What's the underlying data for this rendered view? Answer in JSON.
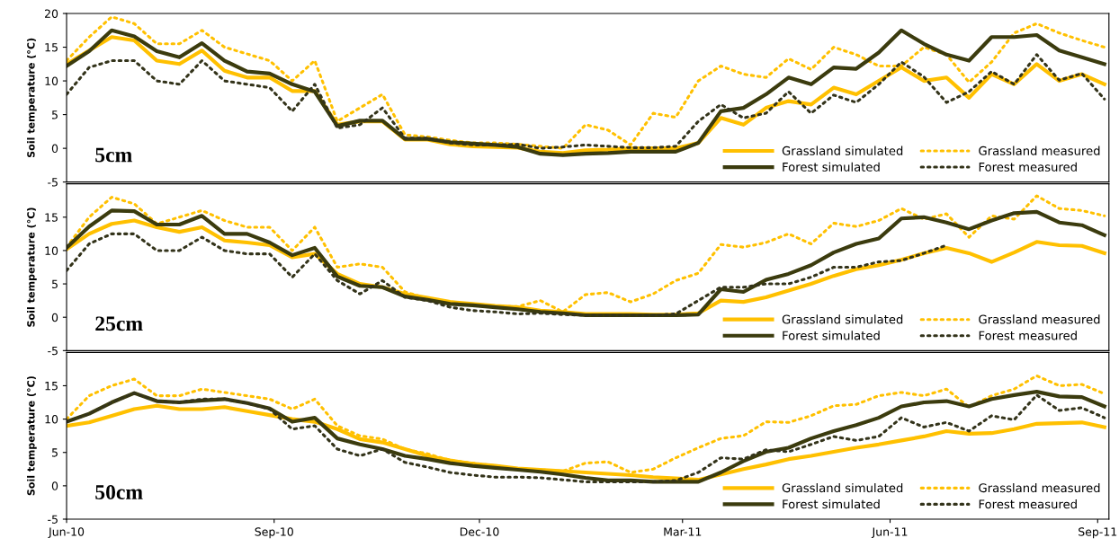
{
  "chart_data": [
    {
      "type": "line",
      "ylabel": "Soil temperature (°C)",
      "annotations": [
        "5cm"
      ],
      "legend": "bottom right",
      "grid": false,
      "tick_labels": "y",
      "x": [
        "2010-06-01",
        "2010-06-11",
        "2010-06-21",
        "2010-07-01",
        "2010-07-11",
        "2010-07-21",
        "2010-07-31",
        "2010-08-10",
        "2010-08-20",
        "2010-08-30",
        "2010-09-09",
        "2010-09-19",
        "2010-09-29",
        "2010-10-09",
        "2010-10-19",
        "2010-10-29",
        "2010-11-08",
        "2010-11-18",
        "2010-11-28",
        "2010-12-08",
        "2010-12-18",
        "2010-12-28",
        "2011-01-07",
        "2011-01-17",
        "2011-01-27",
        "2011-02-06",
        "2011-02-16",
        "2011-02-26",
        "2011-03-08",
        "2011-03-18",
        "2011-03-28",
        "2011-04-07",
        "2011-04-17",
        "2011-04-27",
        "2011-05-07",
        "2011-05-17",
        "2011-05-27",
        "2011-06-06",
        "2011-06-16",
        "2011-06-26",
        "2011-07-06",
        "2011-07-16",
        "2011-07-26",
        "2011-08-05",
        "2011-08-15",
        "2011-08-25",
        "2011-09-04"
      ],
      "xlim": [
        "2010-06-01",
        "2011-09-06"
      ],
      "ylim": [
        -5,
        20
      ],
      "yticks": [
        -5,
        0,
        5,
        10,
        15,
        20
      ],
      "series": [
        {
          "name": "Grassland simulated",
          "color": "#ffc000",
          "line_style": "solid",
          "values": [
            12.5,
            14.5,
            16.5,
            16,
            13,
            12.5,
            14.5,
            11.5,
            10.5,
            10.5,
            8.5,
            8.5,
            3.5,
            4,
            4,
            1.3,
            1.3,
            0.6,
            0.3,
            0.2,
            0.1,
            -0.5,
            -0.7,
            -0.3,
            -0.2,
            0,
            0,
            0,
            0.8,
            4.5,
            3.5,
            6,
            7,
            6.5,
            9,
            8,
            10,
            12,
            10,
            10.5,
            7.5,
            11,
            9.5,
            12.5,
            10,
            11,
            9.5
          ]
        },
        {
          "name": "Grassland measured",
          "color": "#ffc000",
          "line_style": "dotted",
          "values": [
            13,
            16.5,
            19.5,
            18.5,
            15.5,
            15.5,
            17.5,
            15,
            14,
            13,
            10,
            13,
            4,
            6,
            8,
            2,
            1.7,
            1.2,
            0.8,
            0.8,
            0.6,
            0.3,
            0,
            3.5,
            2.7,
            0.5,
            5.2,
            4.6,
            10,
            12.2,
            11,
            10.5,
            13.3,
            11.7,
            15,
            13.9,
            12.2,
            12.2,
            15,
            13.9,
            9.8,
            12.8,
            17.1,
            18.5,
            17.1,
            16,
            15
          ]
        },
        {
          "name": "Forest simulated",
          "color": "#3b3b0e",
          "line_style": "solid",
          "values": [
            12.2,
            14.4,
            17.5,
            16.6,
            14.4,
            13.5,
            15.6,
            13,
            11.4,
            11.1,
            9.5,
            8.4,
            3.3,
            4.1,
            4.1,
            1.4,
            1.4,
            0.9,
            0.7,
            0.5,
            0.2,
            -0.8,
            -1,
            -0.8,
            -0.7,
            -0.5,
            -0.5,
            -0.5,
            0.8,
            5.5,
            6,
            8,
            10.5,
            9.5,
            12,
            11.8,
            14.2,
            17.5,
            15.5,
            13.9,
            13,
            16.5,
            16.5,
            16.8,
            14.5,
            13.5,
            12.5
          ]
        },
        {
          "name": "Forest measured",
          "color": "#33331a",
          "line_style": "dotted",
          "values": [
            8,
            12,
            13,
            13,
            10,
            9.5,
            13,
            10,
            9.5,
            9,
            5.5,
            9.5,
            3,
            3.5,
            6,
            1.5,
            1.5,
            0.8,
            0.5,
            0.5,
            0.6,
            0,
            0.2,
            0.5,
            0.3,
            0.1,
            0.1,
            0.3,
            4,
            6.5,
            4.5,
            5.2,
            8.4,
            5.2,
            7.9,
            6.8,
            9.5,
            12.8,
            10.6,
            6.8,
            8.4,
            11.4,
            9.5,
            13.9,
            10.1,
            11.1,
            7.3
          ]
        }
      ]
    },
    {
      "type": "line",
      "ylabel": "Soil temperature (°C)",
      "annotations": [
        "25cm"
      ],
      "legend": "bottom right",
      "grid": false,
      "tick_labels": "y",
      "x": [
        "2010-06-01",
        "2010-06-11",
        "2010-06-21",
        "2010-07-01",
        "2010-07-11",
        "2010-07-21",
        "2010-07-31",
        "2010-08-10",
        "2010-08-20",
        "2010-08-30",
        "2010-09-09",
        "2010-09-19",
        "2010-09-29",
        "2010-10-09",
        "2010-10-19",
        "2010-10-29",
        "2010-11-08",
        "2010-11-18",
        "2010-11-28",
        "2010-12-08",
        "2010-12-18",
        "2010-12-28",
        "2011-01-07",
        "2011-01-17",
        "2011-01-27",
        "2011-02-06",
        "2011-02-16",
        "2011-02-26",
        "2011-03-08",
        "2011-03-18",
        "2011-03-28",
        "2011-04-07",
        "2011-04-17",
        "2011-04-27",
        "2011-05-07",
        "2011-05-17",
        "2011-05-27",
        "2011-06-06",
        "2011-06-16",
        "2011-06-26",
        "2011-07-06",
        "2011-07-16",
        "2011-07-26",
        "2011-08-05",
        "2011-08-15",
        "2011-08-25",
        "2011-09-04"
      ],
      "xlim": [
        "2010-06-01",
        "2011-09-06"
      ],
      "ylim": [
        -5,
        20
      ],
      "yticks": [
        -5,
        0,
        5,
        10,
        15
      ],
      "series": [
        {
          "name": "Grassland simulated",
          "color": "#ffc000",
          "line_style": "solid",
          "values": [
            10.2,
            12.5,
            14,
            14.5,
            13.5,
            12.8,
            13.5,
            11.5,
            11.2,
            10.8,
            9,
            9.5,
            6.5,
            5,
            4.5,
            3.5,
            2.9,
            2.3,
            2,
            1.7,
            1.5,
            1,
            0.8,
            0.5,
            0.5,
            0.5,
            0.4,
            0.4,
            0.6,
            2.5,
            2.3,
            3,
            4,
            5,
            6.2,
            7.2,
            7.8,
            8.6,
            9.6,
            10.4,
            9.6,
            8.3,
            9.7,
            11.3,
            10.8,
            10.7,
            9.6
          ]
        },
        {
          "name": "Grassland measured",
          "color": "#ffc000",
          "line_style": "dotted",
          "values": [
            10.5,
            15,
            18,
            17,
            14,
            15,
            16,
            14.5,
            13.5,
            13.5,
            10,
            13.5,
            7.5,
            8,
            7.5,
            3.8,
            2.8,
            2.2,
            1.8,
            1.6,
            1.6,
            2.5,
            0.8,
            3.4,
            3.7,
            2.3,
            3.5,
            5.5,
            6.6,
            10.9,
            10.5,
            11.2,
            12.5,
            11,
            14.1,
            13.6,
            14.5,
            16.3,
            14.7,
            15.5,
            12,
            15.2,
            14.7,
            18.2,
            16.3,
            16,
            15.2
          ]
        },
        {
          "name": "Forest simulated",
          "color": "#3b3b0e",
          "line_style": "solid",
          "values": [
            10.4,
            13.6,
            16,
            15.9,
            13.9,
            13.9,
            15.2,
            12.5,
            12.5,
            11.2,
            9.3,
            10.4,
            6.1,
            4.7,
            4.5,
            3.1,
            2.6,
            2,
            1.8,
            1.5,
            1.2,
            0.8,
            0.6,
            0.3,
            0.3,
            0.3,
            0.3,
            0.3,
            0.4,
            4.2,
            3.8,
            5.6,
            6.5,
            7.8,
            9.7,
            11,
            11.8,
            14.8,
            15,
            14.2,
            13.2,
            14.5,
            15.6,
            15.8,
            14.2,
            13.8,
            12.3
          ]
        },
        {
          "name": "Forest measured",
          "color": "#33331a",
          "line_style": "dotted",
          "values": [
            7,
            11,
            12.5,
            12.5,
            10,
            10,
            12,
            10,
            9.5,
            9.5,
            6,
            9.5,
            5.5,
            3.5,
            5.5,
            3,
            2.5,
            1.5,
            1,
            0.8,
            0.5,
            0.6,
            0.4,
            0.3,
            0.3,
            0.3,
            0.3,
            0.5,
            2.5,
            4.5,
            4.5,
            5,
            5,
            6,
            7.5,
            7.5,
            8.3,
            8.5,
            9.6,
            10.8,
            null,
            null,
            null,
            null,
            null,
            null,
            null
          ]
        }
      ]
    },
    {
      "type": "line",
      "ylabel": "Soil temperature (°C)",
      "annotations": [
        "50cm"
      ],
      "legend": "bottom right",
      "grid": false,
      "x": [
        "2010-06-01",
        "2010-06-11",
        "2010-06-21",
        "2010-07-01",
        "2010-07-11",
        "2010-07-21",
        "2010-07-31",
        "2010-08-10",
        "2010-08-20",
        "2010-08-30",
        "2010-09-09",
        "2010-09-19",
        "2010-09-29",
        "2010-10-09",
        "2010-10-19",
        "2010-10-29",
        "2010-11-08",
        "2010-11-18",
        "2010-11-28",
        "2010-12-08",
        "2010-12-18",
        "2010-12-28",
        "2011-01-07",
        "2011-01-17",
        "2011-01-27",
        "2011-02-06",
        "2011-02-16",
        "2011-02-26",
        "2011-03-08",
        "2011-03-18",
        "2011-03-28",
        "2011-04-07",
        "2011-04-17",
        "2011-04-27",
        "2011-05-07",
        "2011-05-17",
        "2011-05-27",
        "2011-06-06",
        "2011-06-16",
        "2011-06-26",
        "2011-07-06",
        "2011-07-16",
        "2011-07-26",
        "2011-08-05",
        "2011-08-15",
        "2011-08-25",
        "2011-09-04"
      ],
      "xlim": [
        "2010-06-01",
        "2011-09-06"
      ],
      "ylim": [
        -5,
        20
      ],
      "yticks": [
        -5,
        0,
        5,
        10,
        15
      ],
      "xticks": [
        {
          "value": "2010-06-01",
          "label": "Jun-10"
        },
        {
          "value": "2010-09-01",
          "label": "Sep-10"
        },
        {
          "value": "2010-12-01",
          "label": "Dec-10"
        },
        {
          "value": "2011-03-01",
          "label": "Mar-11"
        },
        {
          "value": "2011-06-01",
          "label": "Jun-11"
        },
        {
          "value": "2011-09-01",
          "label": "Sep-11"
        }
      ],
      "series": [
        {
          "name": "Grassland simulated",
          "color": "#ffc000",
          "line_style": "solid",
          "values": [
            9,
            9.5,
            10.5,
            11.5,
            12,
            11.5,
            11.5,
            11.8,
            11.2,
            10.6,
            10,
            9.6,
            8.5,
            7,
            6.5,
            5.5,
            4.5,
            3.8,
            3.3,
            3,
            2.6,
            2.4,
            2.2,
            2,
            1.8,
            1.6,
            1.3,
            1.1,
            0.9,
            1.7,
            2.5,
            3.2,
            4,
            4.5,
            5.1,
            5.7,
            6.2,
            6.8,
            7.4,
            8.2,
            7.8,
            7.9,
            8.5,
            9.3,
            9.4,
            9.5,
            8.8
          ]
        },
        {
          "name": "Grassland measured",
          "color": "#ffc000",
          "line_style": "dotted",
          "values": [
            10,
            13.5,
            15,
            16,
            13.5,
            13.5,
            14.5,
            14,
            13.5,
            13,
            11.5,
            13,
            9,
            7.5,
            7,
            5.5,
            4.8,
            3.8,
            3.4,
            3,
            2.6,
            2.4,
            2.2,
            3.4,
            3.6,
            2,
            2.5,
            4.2,
            5.7,
            7.1,
            7.5,
            9.6,
            9.5,
            10.5,
            12,
            12.2,
            13.5,
            14,
            13.5,
            14.5,
            11.8,
            13.5,
            14.5,
            16.5,
            15,
            15.2,
            13.8
          ]
        },
        {
          "name": "Forest simulated",
          "color": "#3b3b0e",
          "line_style": "solid",
          "values": [
            9.6,
            10.8,
            12.5,
            13.9,
            12.7,
            12.5,
            12.8,
            13,
            12.4,
            11.6,
            9.6,
            10.2,
            7.1,
            6.2,
            5.5,
            4.5,
            4,
            3.4,
            3,
            2.7,
            2.4,
            2.1,
            1.7,
            1.2,
            0.8,
            0.8,
            0.6,
            0.6,
            0.6,
            2,
            3.7,
            5.1,
            5.7,
            7.1,
            8.2,
            9.1,
            10.2,
            11.9,
            12.5,
            12.7,
            11.9,
            13,
            13.6,
            14.1,
            13.4,
            13.3,
            11.9
          ]
        },
        {
          "name": "Forest measured",
          "color": "#33331a",
          "line_style": "dotted",
          "values": [
            9.6,
            10.8,
            12.5,
            13.9,
            12.7,
            12.5,
            13,
            13,
            12.4,
            11.5,
            8.5,
            9,
            5.5,
            4.5,
            5.5,
            3.5,
            2.8,
            2,
            1.6,
            1.3,
            1.3,
            1.2,
            0.9,
            0.6,
            0.6,
            0.6,
            0.6,
            0.8,
            2,
            4.2,
            4,
            5.4,
            5.1,
            6.2,
            7.4,
            6.8,
            7.4,
            10.2,
            8.8,
            9.5,
            8.2,
            10.5,
            9.9,
            13.6,
            11.3,
            11.7,
            10.2
          ]
        }
      ]
    }
  ]
}
